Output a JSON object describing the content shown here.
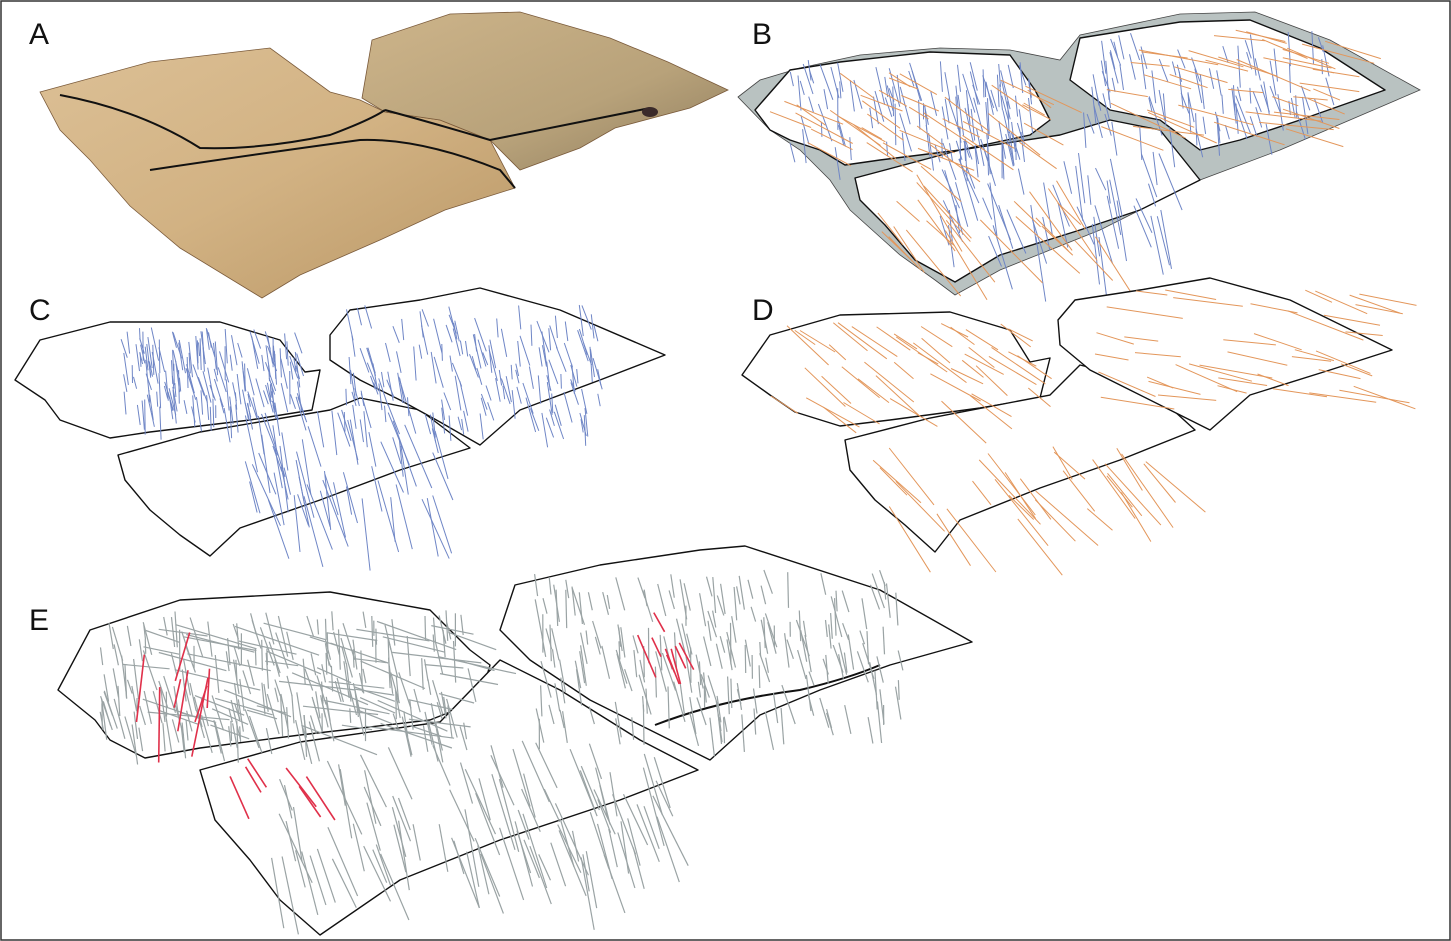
{
  "figure": {
    "panels": [
      {
        "id": "A",
        "label": "A",
        "kind": "photograph"
      },
      {
        "id": "B",
        "label": "B",
        "kind": "combined-tracing"
      },
      {
        "id": "C",
        "label": "C",
        "kind": "tracing-set-1"
      },
      {
        "id": "D",
        "label": "D",
        "kind": "tracing-set-2"
      },
      {
        "id": "E",
        "label": "E",
        "kind": "combined-tracing-highlight"
      }
    ],
    "colors": {
      "frame": "#333333",
      "outline": "#111111",
      "set_1_lines": "#6f86c6",
      "set_2_lines": "#e3965a",
      "missing_area": "#b9c2c1",
      "neutral_lines": "#9aa3a4",
      "highlighted_lines": "#e0304a",
      "stone_light": "#d6b98c",
      "stone_dark": "#a88a5c"
    }
  }
}
